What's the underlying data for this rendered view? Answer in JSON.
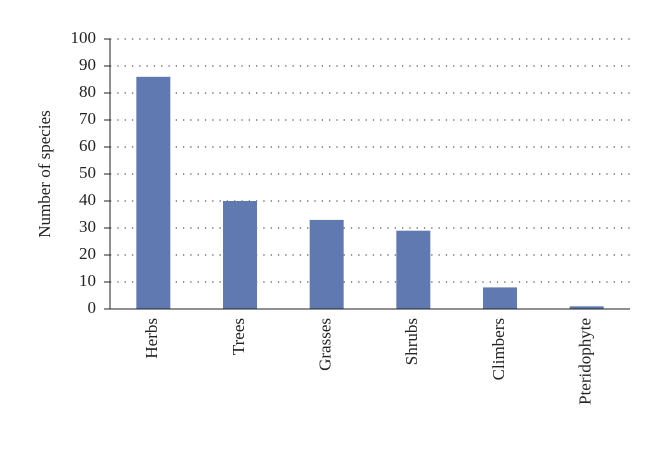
{
  "chart_data": {
    "type": "bar",
    "y_label": "Number of species",
    "categories": [
      "Herbs",
      "Trees",
      "Grasses",
      "Shrubs",
      "Climbers",
      "Pteridophyte"
    ],
    "values": [
      86,
      40,
      33,
      29,
      8,
      1
    ],
    "color": "#6079b0",
    "ylim": [
      0,
      100
    ],
    "yticks": [
      0,
      10,
      20,
      30,
      40,
      50,
      60,
      70,
      80,
      90,
      100
    ],
    "grid": true
  }
}
